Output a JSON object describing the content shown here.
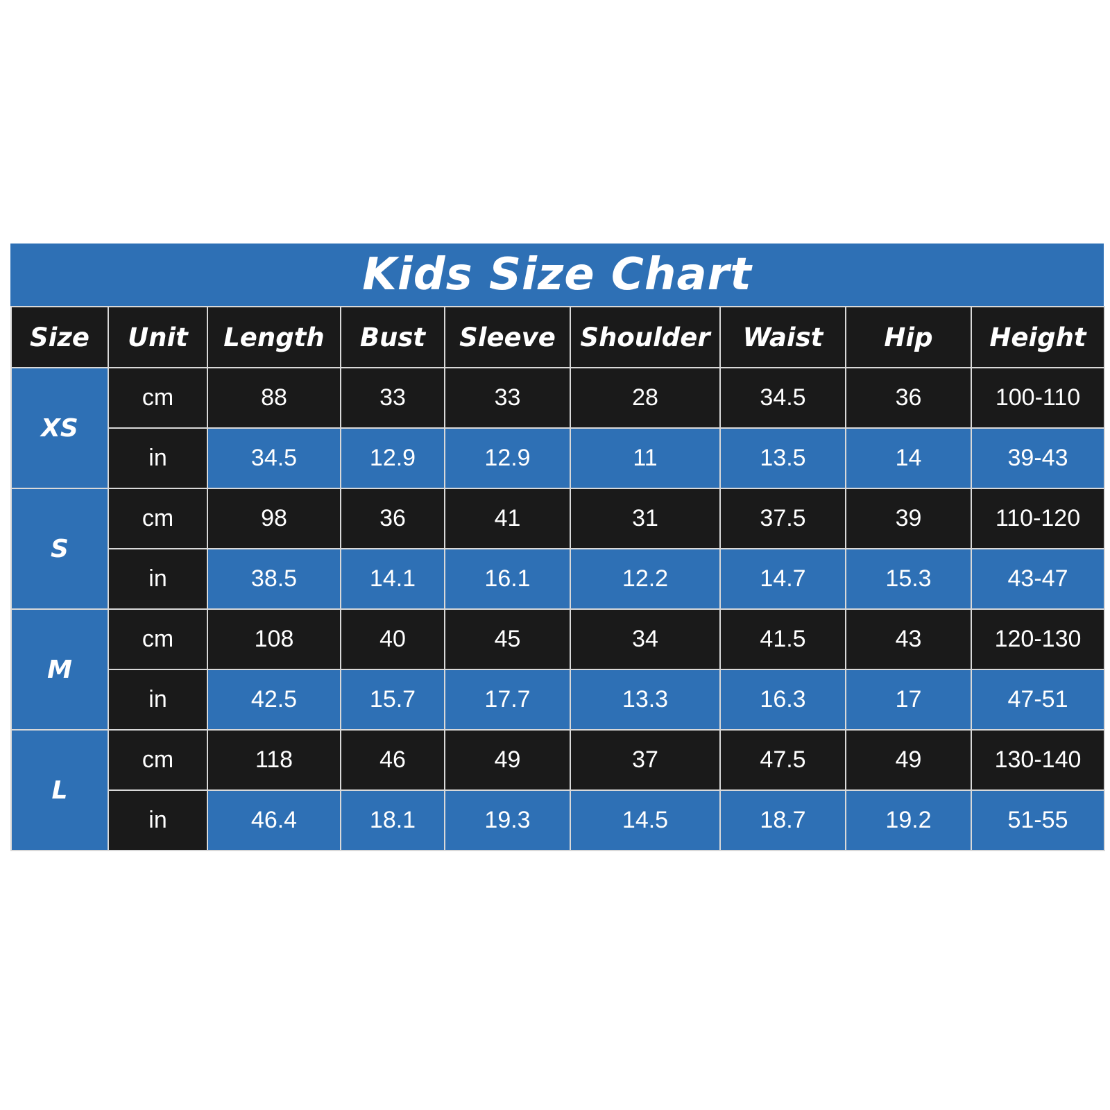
{
  "chart_data": {
    "type": "table",
    "title": "Kids Size Chart",
    "columns": [
      "Size",
      "Unit",
      "Length",
      "Bust",
      "Sleeve",
      "Shoulder",
      "Waist",
      "Hip",
      "Height"
    ],
    "rows": [
      {
        "size": "XS",
        "units": [
          {
            "unit": "cm",
            "values": [
              "88",
              "33",
              "33",
              "28",
              "34.5",
              "36",
              "100-110"
            ]
          },
          {
            "unit": "in",
            "values": [
              "34.5",
              "12.9",
              "12.9",
              "11",
              "13.5",
              "14",
              "39-43"
            ]
          }
        ]
      },
      {
        "size": "S",
        "units": [
          {
            "unit": "cm",
            "values": [
              "98",
              "36",
              "41",
              "31",
              "37.5",
              "39",
              "110-120"
            ]
          },
          {
            "unit": "in",
            "values": [
              "38.5",
              "14.1",
              "16.1",
              "12.2",
              "14.7",
              "15.3",
              "43-47"
            ]
          }
        ]
      },
      {
        "size": "M",
        "units": [
          {
            "unit": "cm",
            "values": [
              "108",
              "40",
              "45",
              "34",
              "41.5",
              "43",
              "120-130"
            ]
          },
          {
            "unit": "in",
            "values": [
              "42.5",
              "15.7",
              "17.7",
              "13.3",
              "16.3",
              "17",
              "47-51"
            ]
          }
        ]
      },
      {
        "size": "L",
        "units": [
          {
            "unit": "cm",
            "values": [
              "118",
              "46",
              "49",
              "37",
              "47.5",
              "49",
              "130-140"
            ]
          },
          {
            "unit": "in",
            "values": [
              "46.4",
              "18.1",
              "19.3",
              "14.5",
              "18.7",
              "19.2",
              "51-55"
            ]
          }
        ]
      }
    ]
  },
  "colors": {
    "accent_blue": "#2e70b5",
    "dark": "#1a1a1a",
    "grid_line": "#d9d9d9",
    "text": "#ffffff"
  }
}
